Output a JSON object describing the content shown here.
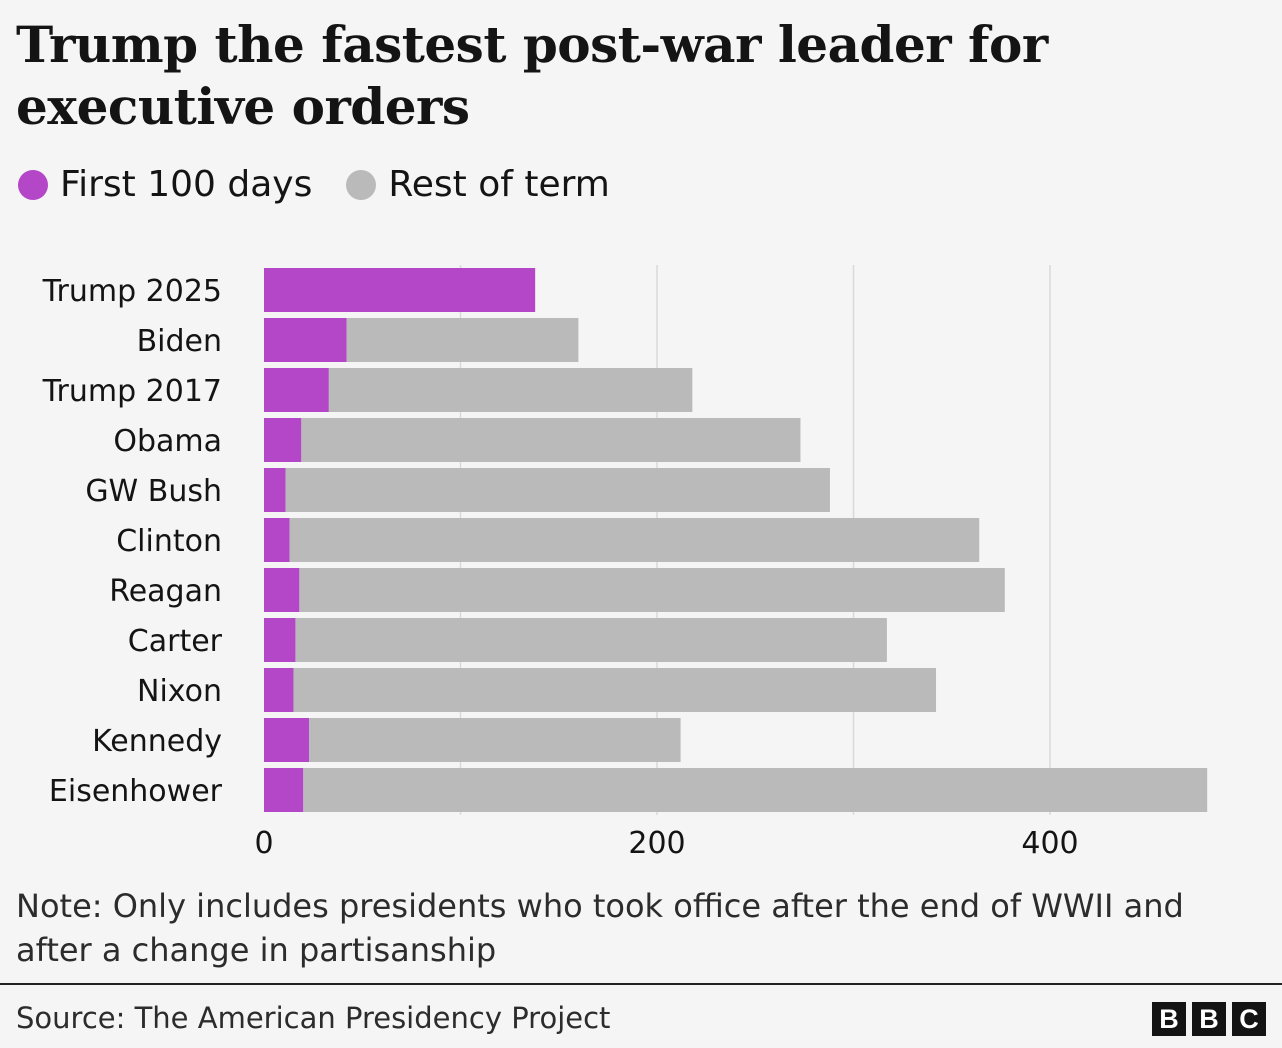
{
  "title": "Trump the fastest post-war leader for executive orders",
  "legend": [
    {
      "label": "First 100 days",
      "color": "#b446c8"
    },
    {
      "label": "Rest of term",
      "color": "#bababa"
    }
  ],
  "chart_data": {
    "type": "bar",
    "orientation": "horizontal",
    "stacked": true,
    "categories": [
      "Trump 2025",
      "Biden",
      "Trump 2017",
      "Obama",
      "GW Bush",
      "Clinton",
      "Reagan",
      "Carter",
      "Nixon",
      "Kennedy",
      "Eisenhower"
    ],
    "series": [
      {
        "name": "First 100 days",
        "color": "#b446c8",
        "values": [
          138,
          42,
          33,
          19,
          11,
          13,
          18,
          16,
          15,
          23,
          20
        ]
      },
      {
        "name": "Rest of term",
        "color": "#bababa",
        "values": [
          0,
          118,
          185,
          254,
          277,
          351,
          359,
          301,
          327,
          189,
          460
        ]
      }
    ],
    "xticks": [
      0,
      200,
      400
    ],
    "xlim": [
      0,
      480
    ],
    "grid": true,
    "legend_position": "top-left"
  },
  "note": "Note: Only includes presidents who took office after the end of WWII and after a change in partisanship",
  "source": "Source: The American Presidency Project",
  "logo": [
    "B",
    "B",
    "C"
  ]
}
